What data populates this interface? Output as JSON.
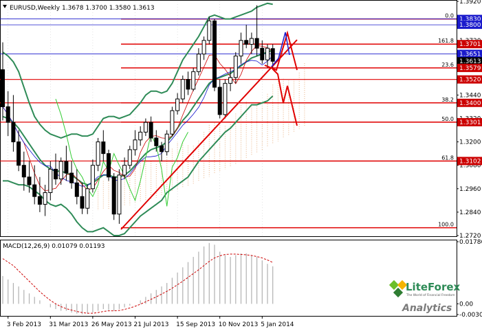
{
  "header": {
    "symbol_label": "EURUSD,Weekly",
    "ohlc_values": "1.3678 1.3700 1.3580 1.3613"
  },
  "macd": {
    "label": "MACD(12,26,9) 0.01079 0.01193",
    "axis_labels": [
      "0.01786",
      "0.00",
      "-0.00307"
    ]
  },
  "logo": {
    "brand": "LiteForex",
    "tagline": "The World of Financial Freedom",
    "sub": "Analytics"
  },
  "colors": {
    "candle": "#000000",
    "bollinger": "#2e8b57",
    "ma_red": "#cc0000",
    "ma_blue": "#1010cc",
    "ichimoku_cloud": "#e8b080",
    "support_red": "#e00000",
    "price_badge": "#cc0000",
    "current_badge": "#000000",
    "macd_signal": "#cc0000",
    "macd_hist": "#b0b0b0"
  },
  "chart_data": {
    "type": "candlestick",
    "title": "EURUSD,Weekly",
    "ylim": [
      1.272,
      1.392
    ],
    "x_tick_labels": [
      "3 Feb 2013",
      "31 Mar 2013",
      "26 May 2013",
      "21 Jul 2013",
      "15 Sep 2013",
      "10 Nov 2013",
      "5 Jan 2014"
    ],
    "y_tick_labels": [
      "1.3920",
      "1.3800",
      "1.3720",
      "1.3520",
      "1.3440",
      "1.3320",
      "1.3200",
      "1.3080",
      "1.2960",
      "1.2840",
      "1.2720"
    ],
    "fibonacci_levels": [
      {
        "label": "0.0",
        "price": 1.383
      },
      {
        "label": "161.8",
        "price": 1.3701
      },
      {
        "label": "23.6",
        "price": 1.3579
      },
      {
        "label": "38.2",
        "price": 1.34
      },
      {
        "label": "50.0",
        "price": 1.3301
      },
      {
        "label": "61.8",
        "price": 1.3102
      },
      {
        "label": "100.0",
        "price": 1.276
      }
    ],
    "price_badges": [
      {
        "text": "1.3830",
        "price": 1.383,
        "style": "blue"
      },
      {
        "text": "1.3800",
        "price": 1.38,
        "style": "blue"
      },
      {
        "text": "1.3701",
        "price": 1.3701,
        "style": "red"
      },
      {
        "text": "1.3651",
        "price": 1.3651,
        "style": "blue"
      },
      {
        "text": "1.3613",
        "price": 1.3613,
        "style": "black"
      },
      {
        "text": "1.3579",
        "price": 1.3579,
        "style": "red"
      },
      {
        "text": "1.3520",
        "price": 1.352,
        "style": "red"
      },
      {
        "text": "1.3400",
        "price": 1.34,
        "style": "red"
      },
      {
        "text": "1.3301",
        "price": 1.3301,
        "style": "red"
      },
      {
        "text": "1.3102",
        "price": 1.3102,
        "style": "red"
      }
    ],
    "candles": [
      [
        1.357,
        1.371,
        1.331,
        1.338
      ],
      [
        1.338,
        1.346,
        1.323,
        1.33
      ],
      [
        1.33,
        1.344,
        1.315,
        1.32
      ],
      [
        1.32,
        1.326,
        1.305,
        1.308
      ],
      [
        1.308,
        1.315,
        1.295,
        1.302
      ],
      [
        1.302,
        1.31,
        1.294,
        1.298
      ],
      [
        1.298,
        1.308,
        1.288,
        1.292
      ],
      [
        1.292,
        1.302,
        1.284,
        1.288
      ],
      [
        1.288,
        1.298,
        1.282,
        1.294
      ],
      [
        1.294,
        1.31,
        1.29,
        1.306
      ],
      [
        1.306,
        1.314,
        1.298,
        1.301
      ],
      [
        1.301,
        1.312,
        1.298,
        1.31
      ],
      [
        1.31,
        1.318,
        1.3,
        1.304
      ],
      [
        1.304,
        1.31,
        1.296,
        1.299
      ],
      [
        1.299,
        1.306,
        1.288,
        1.292
      ],
      [
        1.292,
        1.299,
        1.283,
        1.286
      ],
      [
        1.286,
        1.298,
        1.283,
        1.296
      ],
      [
        1.296,
        1.311,
        1.294,
        1.308
      ],
      [
        1.308,
        1.322,
        1.305,
        1.32
      ],
      [
        1.32,
        1.326,
        1.31,
        1.314
      ],
      [
        1.314,
        1.316,
        1.3,
        1.302
      ],
      [
        1.302,
        1.304,
        1.28,
        1.283
      ],
      [
        1.283,
        1.306,
        1.278,
        1.303
      ],
      [
        1.303,
        1.312,
        1.301,
        1.308
      ],
      [
        1.308,
        1.318,
        1.306,
        1.316
      ],
      [
        1.316,
        1.326,
        1.313,
        1.321
      ],
      [
        1.321,
        1.328,
        1.318,
        1.325
      ],
      [
        1.325,
        1.332,
        1.323,
        1.33
      ],
      [
        1.33,
        1.333,
        1.32,
        1.322
      ],
      [
        1.322,
        1.326,
        1.315,
        1.318
      ],
      [
        1.318,
        1.32,
        1.31,
        1.315
      ],
      [
        1.315,
        1.326,
        1.313,
        1.324
      ],
      [
        1.324,
        1.338,
        1.323,
        1.336
      ],
      [
        1.336,
        1.345,
        1.334,
        1.342
      ],
      [
        1.342,
        1.354,
        1.34,
        1.352
      ],
      [
        1.352,
        1.356,
        1.344,
        1.347
      ],
      [
        1.347,
        1.358,
        1.346,
        1.356
      ],
      [
        1.356,
        1.368,
        1.354,
        1.365
      ],
      [
        1.365,
        1.374,
        1.362,
        1.372
      ],
      [
        1.372,
        1.384,
        1.37,
        1.382
      ],
      [
        1.382,
        1.383,
        1.346,
        1.348
      ],
      [
        1.348,
        1.352,
        1.332,
        1.334
      ],
      [
        1.334,
        1.352,
        1.332,
        1.35
      ],
      [
        1.35,
        1.358,
        1.346,
        1.353
      ],
      [
        1.353,
        1.366,
        1.35,
        1.364
      ],
      [
        1.364,
        1.376,
        1.36,
        1.372
      ],
      [
        1.372,
        1.38,
        1.368,
        1.37
      ],
      [
        1.37,
        1.376,
        1.365,
        1.373
      ],
      [
        1.373,
        1.39,
        1.364,
        1.368
      ],
      [
        1.368,
        1.372,
        1.36,
        1.362
      ],
      [
        1.362,
        1.37,
        1.358,
        1.368
      ],
      [
        1.3678,
        1.37,
        1.358,
        1.3613
      ]
    ],
    "bollinger_upper": [
      1.366,
      1.364,
      1.361,
      1.356,
      1.348,
      1.34,
      1.333,
      1.329,
      1.326,
      1.324,
      1.323,
      1.322,
      1.323,
      1.324,
      1.324,
      1.323,
      1.323,
      1.324,
      1.328,
      1.332,
      1.333,
      1.333,
      1.332,
      1.333,
      1.334,
      1.337,
      1.34,
      1.344,
      1.346,
      1.346,
      1.345,
      1.346,
      1.35,
      1.356,
      1.362,
      1.366,
      1.37,
      1.374,
      1.379,
      1.384,
      1.385,
      1.384,
      1.383,
      1.383,
      1.384,
      1.385,
      1.386,
      1.387,
      1.389,
      1.39,
      1.391,
      1.3905
    ],
    "bollinger_mid": [
      1.333,
      1.332,
      1.33,
      1.327,
      1.323,
      1.319,
      1.315,
      1.311,
      1.308,
      1.306,
      1.305,
      1.305,
      1.304,
      1.303,
      1.301,
      1.299,
      1.298,
      1.299,
      1.301,
      1.303,
      1.303,
      1.302,
      1.302,
      1.303,
      1.305,
      1.308,
      1.311,
      1.314,
      1.316,
      1.317,
      1.318,
      1.32,
      1.323,
      1.327,
      1.331,
      1.334,
      1.338,
      1.342,
      1.346,
      1.35,
      1.352,
      1.353,
      1.354,
      1.355,
      1.357,
      1.359,
      1.361,
      1.363,
      1.364,
      1.365,
      1.366,
      1.367
    ],
    "bollinger_lower": [
      1.3,
      1.3,
      1.299,
      1.298,
      1.298,
      1.297,
      1.295,
      1.293,
      1.29,
      1.288,
      1.287,
      1.288,
      1.286,
      1.283,
      1.279,
      1.276,
      1.274,
      1.274,
      1.275,
      1.276,
      1.274,
      1.272,
      1.272,
      1.273,
      1.276,
      1.279,
      1.282,
      1.284,
      1.286,
      1.288,
      1.29,
      1.294,
      1.296,
      1.298,
      1.3,
      1.302,
      1.306,
      1.31,
      1.313,
      1.316,
      1.319,
      1.322,
      1.325,
      1.327,
      1.33,
      1.333,
      1.336,
      1.339,
      1.339,
      1.34,
      1.341,
      1.3435
    ],
    "macd_histogram": [
      0.008,
      0.007,
      0.006,
      0.005,
      0.004,
      0.003,
      0.002,
      0.001,
      0.0,
      -0.001,
      -0.0015,
      -0.002,
      -0.002,
      -0.0025,
      -0.0028,
      -0.003,
      -0.0028,
      -0.0025,
      -0.002,
      -0.0015,
      -0.0018,
      -0.002,
      -0.0015,
      -0.001,
      -0.0005,
      0.0,
      0.001,
      0.002,
      0.003,
      0.004,
      0.005,
      0.006,
      0.0075,
      0.009,
      0.0105,
      0.012,
      0.0135,
      0.015,
      0.0165,
      0.0175,
      0.017,
      0.015,
      0.014,
      0.0135,
      0.014,
      0.0145,
      0.0145,
      0.014,
      0.0135,
      0.0125,
      0.0115,
      0.0108
    ],
    "macd_signal": [
      0.013,
      0.012,
      0.011,
      0.0095,
      0.008,
      0.0065,
      0.005,
      0.0035,
      0.0022,
      0.001,
      0.0,
      -0.0008,
      -0.0014,
      -0.0018,
      -0.0022,
      -0.0025,
      -0.0027,
      -0.0027,
      -0.0025,
      -0.0022,
      -0.002,
      -0.002,
      -0.0019,
      -0.0016,
      -0.0012,
      -0.0007,
      -0.0001,
      0.0006,
      0.0013,
      0.002,
      0.0028,
      0.0036,
      0.0045,
      0.0055,
      0.0065,
      0.0076,
      0.0087,
      0.0098,
      0.011,
      0.0122,
      0.0132,
      0.0138,
      0.0142,
      0.0143,
      0.0143,
      0.0142,
      0.0141,
      0.0139,
      0.0136,
      0.0132,
      0.0126,
      0.0119
    ]
  }
}
